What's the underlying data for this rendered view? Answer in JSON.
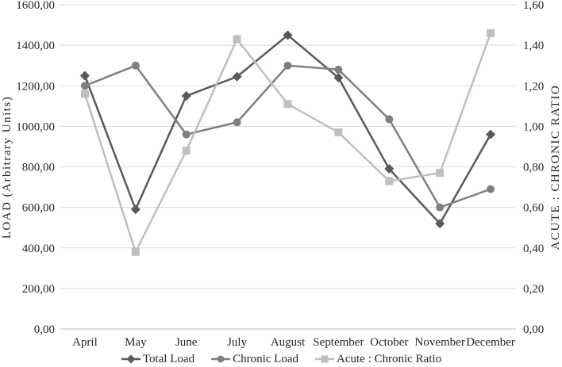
{
  "figure": {
    "background": "#ffffff",
    "text_color": "#262626",
    "gridline_color": "#d9d9d9",
    "axis_line_color": "#bfbfbf"
  },
  "chart_data": {
    "type": "line",
    "title": "",
    "categories": [
      "April",
      "May",
      "June",
      "July",
      "August",
      "September",
      "October",
      "November",
      "December"
    ],
    "series": [
      {
        "name": "Total Load",
        "axis": "left",
        "marker": "diamond",
        "color": "#595959",
        "values": [
          1250,
          590,
          1150,
          1245,
          1450,
          1240,
          790,
          520,
          960
        ]
      },
      {
        "name": "Chronic Load",
        "axis": "left",
        "marker": "circle",
        "color": "#7f7f7f",
        "values": [
          1200,
          1300,
          960,
          1020,
          1300,
          1280,
          1035,
          600,
          690
        ]
      },
      {
        "name": "Acute : Chronic Ratio",
        "axis": "right",
        "marker": "square",
        "color": "#bfbfbf",
        "values": [
          1.16,
          0.38,
          0.88,
          1.43,
          1.11,
          0.97,
          0.73,
          0.77,
          1.46
        ]
      }
    ],
    "left_axis": {
      "label": "LOAD (Arbitrary Units)",
      "min": 0,
      "max": 1600,
      "tick_step": 200,
      "tick_labels_top_to_bottom": [
        "1600,00",
        "1400,00",
        "1200,00",
        "1000,00",
        "800,00",
        "600,00",
        "400,00",
        "200,00",
        "0,00"
      ]
    },
    "right_axis": {
      "label": "ACUTE : CHRONIC RATIO",
      "min": 0,
      "max": 1.6,
      "tick_step": 0.2,
      "tick_labels_top_to_bottom": [
        "1,60",
        "1,40",
        "1,20",
        "1,00",
        "0,80",
        "0,60",
        "0,40",
        "0,20",
        "0,00"
      ]
    },
    "legend_position": "bottom",
    "grid": true
  }
}
